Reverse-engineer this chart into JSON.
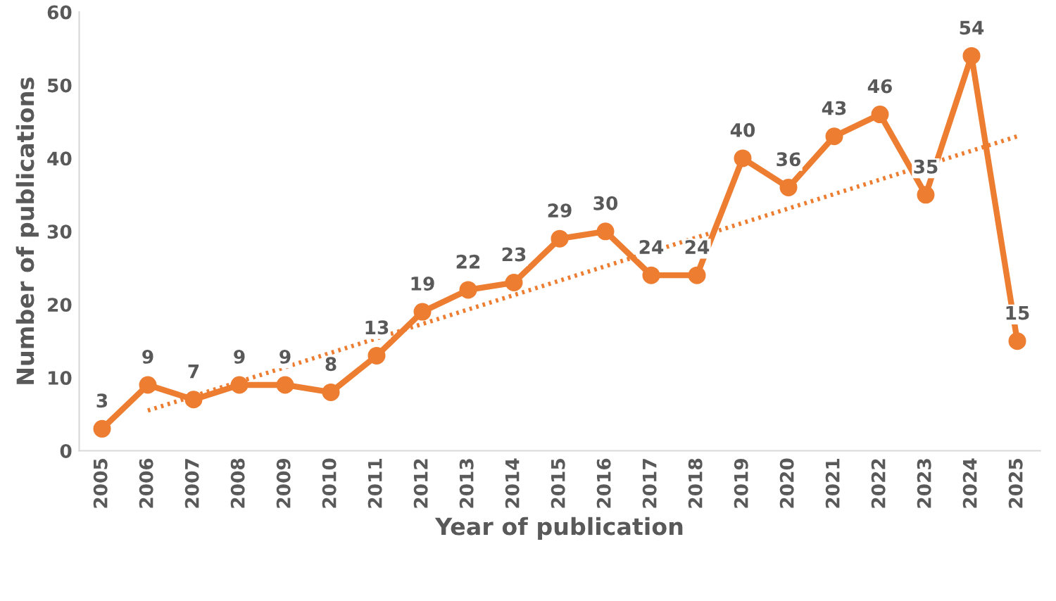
{
  "chart_data": {
    "type": "line",
    "xlabel": "Year of publication",
    "ylabel": "Number of publications",
    "x": [
      2005,
      2006,
      2007,
      2008,
      2009,
      2010,
      2011,
      2012,
      2013,
      2014,
      2015,
      2016,
      2017,
      2018,
      2019,
      2020,
      2021,
      2022,
      2023,
      2024,
      2025
    ],
    "series": [
      {
        "color": "#ed7d31",
        "values": [
          3,
          9,
          7,
          9,
          9,
          8,
          13,
          19,
          22,
          23,
          29,
          30,
          24,
          24,
          40,
          36,
          43,
          46,
          35,
          54,
          15
        ],
        "marker": "circle",
        "line_style": "solid",
        "data_labels": true
      },
      {
        "type": "line",
        "color": "#ed7d31",
        "x": [
          2006,
          2025
        ],
        "values": [
          5.5,
          43
        ],
        "marker": "none",
        "line_style": "dotted"
      }
    ],
    "xlim": [
      2004.5,
      2025.5
    ],
    "xticks": [
      2005,
      2006,
      2007,
      2008,
      2009,
      2010,
      2011,
      2012,
      2013,
      2014,
      2015,
      2016,
      2017,
      2018,
      2019,
      2020,
      2021,
      2022,
      2023,
      2024,
      2025
    ],
    "ylim": [
      0,
      60
    ],
    "yticks": [
      0,
      10,
      20,
      30,
      40,
      50,
      60
    ],
    "grid": false
  }
}
